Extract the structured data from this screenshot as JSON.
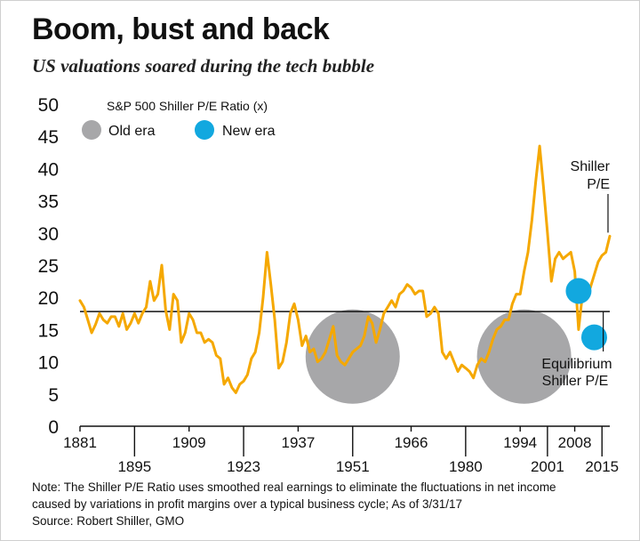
{
  "header": {
    "title": "Boom, bust and back",
    "subtitle": "US valuations soared during the tech bubble"
  },
  "footer": {
    "note_line1": "Note: The Shiller P/E Ratio uses smoothed real earnings to eliminate the fluctuations in net income",
    "note_line2": "caused by variations in profit margins over a typical business cycle; As of 3/31/17",
    "source": "Source: Robert Shiller, GMO"
  },
  "colors": {
    "line": "#F5A800",
    "old_era": "#A7A7A9",
    "new_era": "#12A8DF",
    "reference_line": "#111111"
  },
  "chart_data": {
    "type": "line",
    "title": "Boom, bust and back",
    "subtitle": "US valuations soared during the tech bubble",
    "ylabel": "S&P 500 Shiller P/E Ratio (x)",
    "xlabel": "",
    "xlim": [
      1881,
      2017
    ],
    "ylim": [
      0,
      50
    ],
    "y_ticks": [
      "0",
      "5",
      "10",
      "15",
      "20",
      "25",
      "30",
      "35",
      "40",
      "45",
      "50"
    ],
    "x_ticks_upper": [
      "1881",
      "1909",
      "1937",
      "1966",
      "1994",
      "2008"
    ],
    "x_ticks_lower": [
      "1895",
      "1923",
      "1951",
      "1980",
      "2001",
      "2015"
    ],
    "x_ticks_upper_values": [
      1881,
      1909,
      1937,
      1966,
      1994,
      2008
    ],
    "x_ticks_lower_values": [
      1895,
      1923,
      1951,
      1980,
      2001,
      2015
    ],
    "grid": false,
    "legend": {
      "placement": "top-left",
      "entries": [
        {
          "label": "Old era",
          "color": "#A7A7A9"
        },
        {
          "label": "New era",
          "color": "#12A8DF"
        }
      ]
    },
    "reference_line": {
      "y": 17.8
    },
    "annotations": [
      {
        "text_line1": "Shiller",
        "text_line2": "P/E",
        "x": 2017,
        "y": 29.5
      },
      {
        "text_line1": "Equilibrium",
        "text_line2": "Shiller P/E",
        "x": 2016,
        "y": 17.8
      }
    ],
    "highlights": [
      {
        "era": "Old era",
        "x": 1951,
        "y": 10.8
      },
      {
        "era": "Old era",
        "x": 1995,
        "y": 10.8
      },
      {
        "era": "New era",
        "x": 2009,
        "y": 21.0
      },
      {
        "era": "New era",
        "x": 2013,
        "y": 13.8
      }
    ],
    "series": [
      {
        "name": "Shiller P/E",
        "x": [
          1881,
          1882,
          1883,
          1884,
          1885,
          1886,
          1887,
          1888,
          1889,
          1890,
          1891,
          1892,
          1893,
          1894,
          1895,
          1896,
          1897,
          1898,
          1899,
          1900,
          1901,
          1902,
          1903,
          1904,
          1905,
          1906,
          1907,
          1908,
          1909,
          1910,
          1911,
          1912,
          1913,
          1914,
          1915,
          1916,
          1917,
          1918,
          1919,
          1920,
          1921,
          1922,
          1923,
          1924,
          1925,
          1926,
          1927,
          1928,
          1929,
          1930,
          1931,
          1932,
          1933,
          1934,
          1935,
          1936,
          1937,
          1938,
          1939,
          1940,
          1941,
          1942,
          1943,
          1944,
          1945,
          1946,
          1947,
          1948,
          1949,
          1950,
          1951,
          1952,
          1953,
          1954,
          1955,
          1956,
          1957,
          1958,
          1959,
          1960,
          1961,
          1962,
          1963,
          1964,
          1965,
          1966,
          1967,
          1968,
          1969,
          1970,
          1971,
          1972,
          1973,
          1974,
          1975,
          1976,
          1977,
          1978,
          1979,
          1980,
          1981,
          1982,
          1983,
          1984,
          1985,
          1986,
          1987,
          1988,
          1989,
          1990,
          1991,
          1992,
          1993,
          1994,
          1995,
          1996,
          1997,
          1998,
          1999,
          2000,
          2001,
          2002,
          2003,
          2004,
          2005,
          2006,
          2007,
          2008,
          2009,
          2010,
          2011,
          2012,
          2013,
          2014,
          2015,
          2016,
          2017
        ],
        "values": [
          19.5,
          18.5,
          16.5,
          14.5,
          15.8,
          17.5,
          16.5,
          16.0,
          17.0,
          17.0,
          15.5,
          17.5,
          15.0,
          16.0,
          17.5,
          16.0,
          17.5,
          18.5,
          22.5,
          19.5,
          20.5,
          25.0,
          18.0,
          15.0,
          20.5,
          19.5,
          13.0,
          14.5,
          17.5,
          16.5,
          14.5,
          14.5,
          13.0,
          13.5,
          13.0,
          11.0,
          10.5,
          6.5,
          7.5,
          6.0,
          5.2,
          6.5,
          7.0,
          8.0,
          10.5,
          11.5,
          14.5,
          20.0,
          27.0,
          22.0,
          16.5,
          9.0,
          10.0,
          13.0,
          17.5,
          19.0,
          16.5,
          12.5,
          14.0,
          11.5,
          12.0,
          10.0,
          10.5,
          11.5,
          13.5,
          15.5,
          11.0,
          10.0,
          9.5,
          10.5,
          11.5,
          12.0,
          12.5,
          14.0,
          17.0,
          16.0,
          13.0,
          15.0,
          17.5,
          18.5,
          19.5,
          18.5,
          20.5,
          21.0,
          22.0,
          21.5,
          20.5,
          21.0,
          21.0,
          17.0,
          17.5,
          18.5,
          17.5,
          11.5,
          10.5,
          11.5,
          10.0,
          8.5,
          9.5,
          9.0,
          8.5,
          7.5,
          9.5,
          10.5,
          10.0,
          11.5,
          13.5,
          15.0,
          15.5,
          16.5,
          16.5,
          19.0,
          20.5,
          20.5,
          24.0,
          27.0,
          32.0,
          38.0,
          43.5,
          37.0,
          30.0,
          22.5,
          26.0,
          27.0,
          26.0,
          26.5,
          27.0,
          24.0,
          15.0,
          20.5,
          21.0,
          21.5,
          23.5,
          25.5,
          26.5,
          27.0,
          29.5
        ]
      }
    ]
  }
}
